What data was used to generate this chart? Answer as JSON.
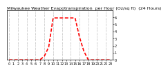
{
  "title": "Milwaukee Weather Evapotranspiration  per Hour (Oz/sq ft)  (24 Hours)",
  "hours": [
    0,
    1,
    2,
    3,
    4,
    5,
    6,
    7,
    8,
    9,
    10,
    11,
    12,
    13,
    14,
    15,
    16,
    17,
    18,
    19,
    20,
    21,
    22,
    23
  ],
  "values": [
    0,
    0,
    0,
    0,
    0,
    0,
    0,
    0,
    0.5,
    1.8,
    5.9,
    5.9,
    5.9,
    5.9,
    5.9,
    5.9,
    3.2,
    1.2,
    0,
    0,
    0,
    0,
    0,
    0
  ],
  "line_color": "#ff0000",
  "bg_color": "#ffffff",
  "grid_color": "#888888",
  "ylim": [
    0,
    7.0
  ],
  "xlim": [
    -0.5,
    23.5
  ],
  "title_fontsize": 4.5,
  "tick_fontsize": 3.5,
  "xticks": [
    0,
    1,
    2,
    3,
    4,
    5,
    6,
    7,
    8,
    9,
    10,
    11,
    12,
    13,
    14,
    15,
    16,
    17,
    18,
    19,
    20,
    21,
    22,
    23
  ],
  "yticks": [
    0,
    1,
    2,
    3,
    4,
    5,
    6
  ],
  "grid_xticks": [
    0,
    2,
    4,
    6,
    8,
    10,
    12,
    14,
    16,
    18,
    20,
    22
  ]
}
